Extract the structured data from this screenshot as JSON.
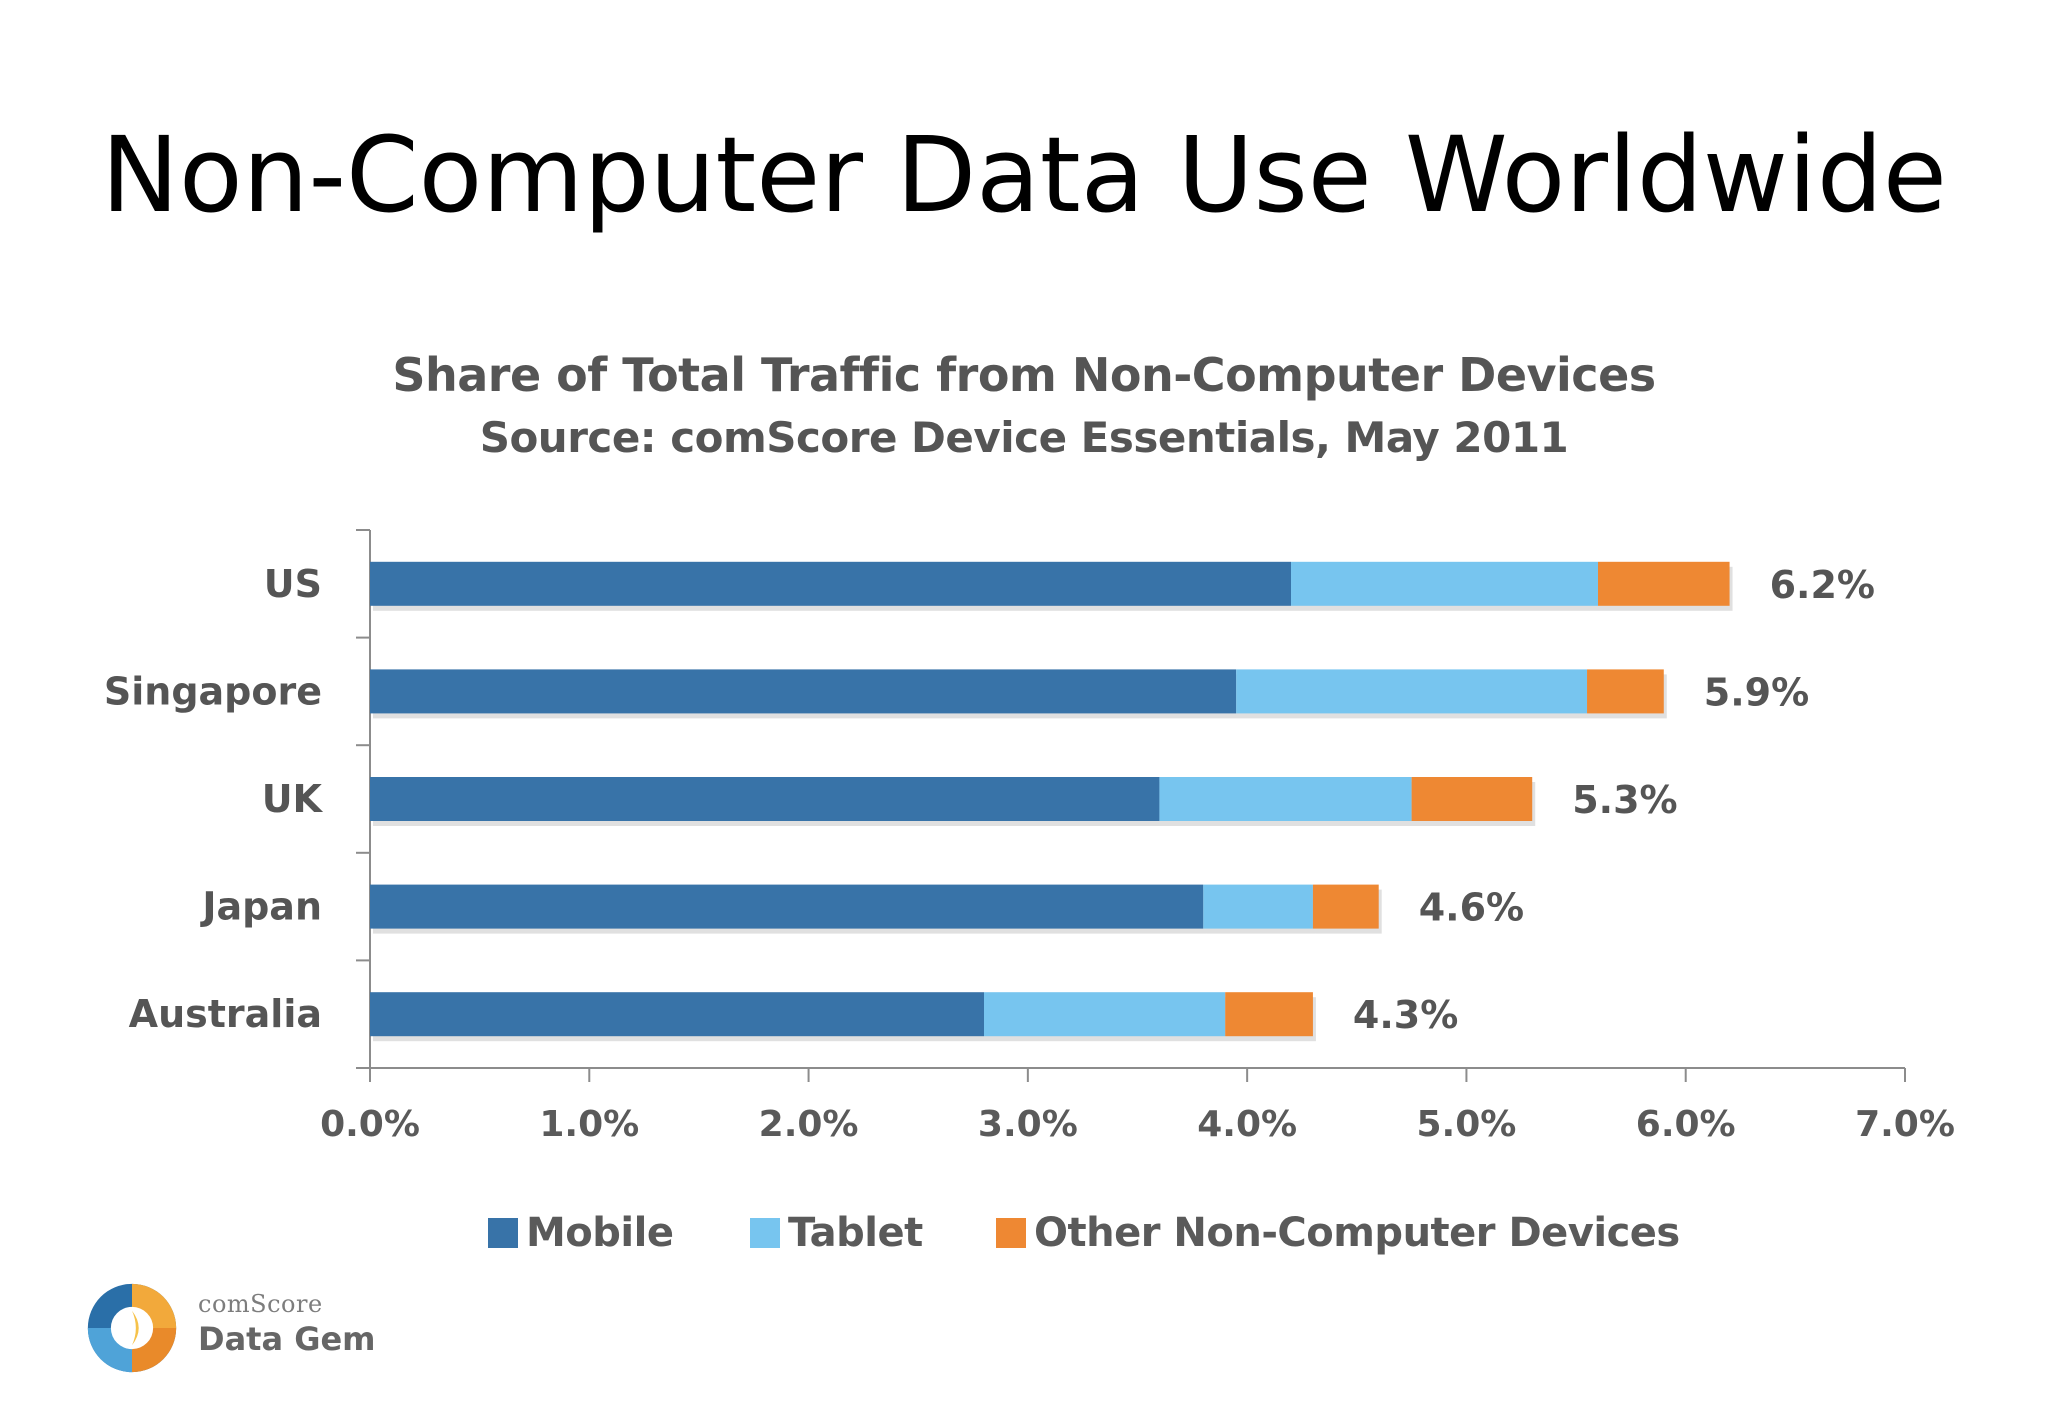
{
  "slide": {
    "title": "Non-Computer Data Use Worldwide"
  },
  "chart_data": {
    "type": "bar",
    "orientation": "horizontal",
    "stacked": true,
    "title": "Share of Total Traffic from Non-Computer Devices",
    "subtitle": "Source: comScore Device Essentials, May 2011",
    "categories": [
      "US",
      "Singapore",
      "UK",
      "Japan",
      "Australia"
    ],
    "series": [
      {
        "name": "Mobile",
        "color": "#3873a8",
        "values": [
          4.2,
          3.95,
          3.6,
          3.8,
          2.8
        ]
      },
      {
        "name": "Tablet",
        "color": "#77c5ef",
        "values": [
          1.4,
          1.6,
          1.15,
          0.5,
          1.1
        ]
      },
      {
        "name": "Other Non-Computer Devices",
        "color": "#ee8833",
        "values": [
          0.6,
          0.35,
          0.55,
          0.3,
          0.4
        ]
      }
    ],
    "totals": [
      6.2,
      5.9,
      5.3,
      4.6,
      4.3
    ],
    "total_labels": [
      "6.2%",
      "5.9%",
      "5.3%",
      "4.6%",
      "4.3%"
    ],
    "xlim": [
      0,
      7
    ],
    "x_ticks": [
      0,
      1,
      2,
      3,
      4,
      5,
      6,
      7
    ],
    "x_tick_labels": [
      "0.0%",
      "1.0%",
      "2.0%",
      "3.0%",
      "4.0%",
      "5.0%",
      "6.0%",
      "7.0%"
    ],
    "xlabel": "",
    "ylabel": "",
    "grid": false,
    "legend_position": "bottom"
  },
  "logo": {
    "top_text": "comScore",
    "bottom_text": "Data Gem"
  }
}
